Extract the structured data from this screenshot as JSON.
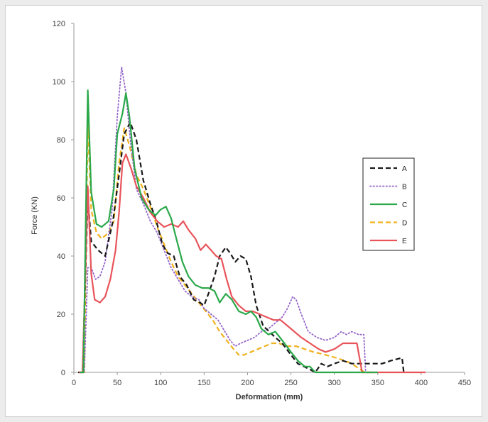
{
  "chart_data": {
    "type": "line",
    "title": "",
    "xlabel": "Deformation (mm)",
    "ylabel": "Force (KN)",
    "xlim": [
      0,
      450
    ],
    "ylim": [
      0,
      120
    ],
    "x_ticks": [
      "0",
      "50",
      "100",
      "150",
      "200",
      "250",
      "300",
      "350",
      "400",
      "450"
    ],
    "y_ticks": [
      "0",
      "20",
      "40",
      "60",
      "80",
      "100",
      "120"
    ],
    "grid": false,
    "legend": "right",
    "series": [
      {
        "name": "A",
        "color": "#1a1a1a",
        "style": "dashed",
        "points": [
          [
            5,
            0
          ],
          [
            10,
            0
          ],
          [
            16,
            60
          ],
          [
            20,
            45
          ],
          [
            28,
            42
          ],
          [
            36,
            40
          ],
          [
            45,
            52
          ],
          [
            52,
            68
          ],
          [
            58,
            82
          ],
          [
            65,
            86
          ],
          [
            72,
            80
          ],
          [
            80,
            66
          ],
          [
            88,
            58
          ],
          [
            95,
            52
          ],
          [
            102,
            44
          ],
          [
            108,
            41
          ],
          [
            115,
            40
          ],
          [
            122,
            33
          ],
          [
            130,
            30
          ],
          [
            138,
            25
          ],
          [
            145,
            24
          ],
          [
            150,
            23
          ],
          [
            155,
            27
          ],
          [
            162,
            33
          ],
          [
            168,
            40
          ],
          [
            175,
            43
          ],
          [
            180,
            41
          ],
          [
            186,
            38
          ],
          [
            192,
            40
          ],
          [
            198,
            39
          ],
          [
            204,
            33
          ],
          [
            210,
            23
          ],
          [
            218,
            16
          ],
          [
            225,
            14
          ],
          [
            232,
            12
          ],
          [
            240,
            10
          ],
          [
            250,
            6
          ],
          [
            258,
            3
          ],
          [
            265,
            2
          ],
          [
            272,
            1
          ],
          [
            278,
            0
          ],
          [
            285,
            3
          ],
          [
            292,
            2
          ],
          [
            300,
            3
          ],
          [
            310,
            4
          ],
          [
            320,
            3
          ],
          [
            330,
            3
          ],
          [
            340,
            3
          ],
          [
            355,
            3
          ],
          [
            365,
            4
          ],
          [
            378,
            5
          ],
          [
            380,
            0
          ]
        ]
      },
      {
        "name": "B",
        "color": "#9466c9",
        "style": "dotted",
        "points": [
          [
            7,
            0
          ],
          [
            12,
            0
          ],
          [
            16,
            36
          ],
          [
            20,
            36
          ],
          [
            25,
            32
          ],
          [
            30,
            33
          ],
          [
            36,
            38
          ],
          [
            44,
            56
          ],
          [
            50,
            88
          ],
          [
            55,
            105
          ],
          [
            60,
            96
          ],
          [
            65,
            80
          ],
          [
            72,
            63
          ],
          [
            80,
            58
          ],
          [
            88,
            52
          ],
          [
            96,
            48
          ],
          [
            104,
            42
          ],
          [
            112,
            36
          ],
          [
            120,
            32
          ],
          [
            128,
            28
          ],
          [
            136,
            26
          ],
          [
            144,
            25
          ],
          [
            150,
            22
          ],
          [
            158,
            20
          ],
          [
            166,
            18
          ],
          [
            172,
            15
          ],
          [
            180,
            11
          ],
          [
            186,
            9
          ],
          [
            192,
            10
          ],
          [
            200,
            11
          ],
          [
            208,
            12
          ],
          [
            216,
            14
          ],
          [
            224,
            15
          ],
          [
            232,
            17
          ],
          [
            240,
            19
          ],
          [
            246,
            22
          ],
          [
            252,
            26
          ],
          [
            256,
            25
          ],
          [
            262,
            20
          ],
          [
            270,
            14
          ],
          [
            280,
            12
          ],
          [
            290,
            11
          ],
          [
            300,
            12
          ],
          [
            308,
            14
          ],
          [
            314,
            13
          ],
          [
            320,
            14
          ],
          [
            328,
            13
          ],
          [
            334,
            13
          ],
          [
            336,
            0
          ],
          [
            340,
            0
          ]
        ]
      },
      {
        "name": "C",
        "color": "#2aa84a",
        "style": "solid",
        "points": [
          [
            7,
            0
          ],
          [
            11,
            0
          ],
          [
            16,
            97
          ],
          [
            20,
            62
          ],
          [
            26,
            51
          ],
          [
            32,
            50
          ],
          [
            40,
            52
          ],
          [
            46,
            63
          ],
          [
            50,
            82
          ],
          [
            56,
            89
          ],
          [
            60,
            96
          ],
          [
            64,
            88
          ],
          [
            70,
            70
          ],
          [
            78,
            60
          ],
          [
            86,
            56
          ],
          [
            94,
            54
          ],
          [
            100,
            56
          ],
          [
            106,
            57
          ],
          [
            112,
            53
          ],
          [
            118,
            46
          ],
          [
            125,
            38
          ],
          [
            132,
            33
          ],
          [
            140,
            30
          ],
          [
            148,
            29
          ],
          [
            155,
            29
          ],
          [
            162,
            28
          ],
          [
            168,
            24
          ],
          [
            175,
            27
          ],
          [
            182,
            25
          ],
          [
            190,
            21
          ],
          [
            198,
            20
          ],
          [
            204,
            21
          ],
          [
            210,
            19
          ],
          [
            216,
            15
          ],
          [
            224,
            13
          ],
          [
            232,
            14
          ],
          [
            240,
            11
          ],
          [
            250,
            7
          ],
          [
            258,
            4
          ],
          [
            266,
            2
          ],
          [
            272,
            2
          ],
          [
            278,
            0
          ],
          [
            282,
            0
          ],
          [
            350,
            0
          ]
        ]
      },
      {
        "name": "D",
        "color": "#f0b21e",
        "style": "dashed",
        "points": [
          [
            8,
            0
          ],
          [
            12,
            0
          ],
          [
            16,
            86
          ],
          [
            20,
            56
          ],
          [
            26,
            48
          ],
          [
            32,
            46
          ],
          [
            40,
            48
          ],
          [
            46,
            52
          ],
          [
            52,
            72
          ],
          [
            58,
            84
          ],
          [
            64,
            78
          ],
          [
            72,
            68
          ],
          [
            80,
            63
          ],
          [
            88,
            57
          ],
          [
            96,
            50
          ],
          [
            104,
            44
          ],
          [
            112,
            38
          ],
          [
            120,
            33
          ],
          [
            128,
            30
          ],
          [
            136,
            27
          ],
          [
            144,
            24
          ],
          [
            152,
            21
          ],
          [
            160,
            18
          ],
          [
            168,
            14
          ],
          [
            176,
            11
          ],
          [
            184,
            8
          ],
          [
            190,
            6
          ],
          [
            196,
            6
          ],
          [
            204,
            7
          ],
          [
            212,
            8
          ],
          [
            220,
            9
          ],
          [
            228,
            10
          ],
          [
            236,
            10
          ],
          [
            246,
            9
          ],
          [
            256,
            9
          ],
          [
            266,
            8
          ],
          [
            276,
            7
          ],
          [
            290,
            6
          ],
          [
            302,
            5
          ],
          [
            312,
            4
          ],
          [
            320,
            3
          ],
          [
            330,
            1
          ],
          [
            335,
            0
          ],
          [
            345,
            0
          ]
        ]
      },
      {
        "name": "E",
        "color": "#e8545a",
        "style": "solid",
        "points": [
          [
            6,
            0
          ],
          [
            10,
            0
          ],
          [
            16,
            64
          ],
          [
            20,
            34
          ],
          [
            24,
            25
          ],
          [
            30,
            24
          ],
          [
            36,
            26
          ],
          [
            42,
            32
          ],
          [
            48,
            42
          ],
          [
            52,
            55
          ],
          [
            56,
            72
          ],
          [
            60,
            75
          ],
          [
            66,
            70
          ],
          [
            72,
            64
          ],
          [
            80,
            60
          ],
          [
            88,
            55
          ],
          [
            96,
            52
          ],
          [
            104,
            50
          ],
          [
            112,
            51
          ],
          [
            120,
            50
          ],
          [
            126,
            52
          ],
          [
            132,
            49
          ],
          [
            140,
            46
          ],
          [
            146,
            42
          ],
          [
            152,
            44
          ],
          [
            158,
            42
          ],
          [
            164,
            40
          ],
          [
            170,
            39
          ],
          [
            176,
            32
          ],
          [
            182,
            26
          ],
          [
            190,
            23
          ],
          [
            198,
            21
          ],
          [
            206,
            21
          ],
          [
            214,
            20
          ],
          [
            222,
            19
          ],
          [
            230,
            18
          ],
          [
            238,
            18
          ],
          [
            246,
            16
          ],
          [
            254,
            14
          ],
          [
            262,
            12
          ],
          [
            272,
            10
          ],
          [
            282,
            8
          ],
          [
            290,
            7
          ],
          [
            300,
            8
          ],
          [
            310,
            10
          ],
          [
            318,
            10
          ],
          [
            326,
            10
          ],
          [
            332,
            0
          ],
          [
            340,
            0
          ],
          [
            405,
            0
          ]
        ]
      }
    ]
  }
}
